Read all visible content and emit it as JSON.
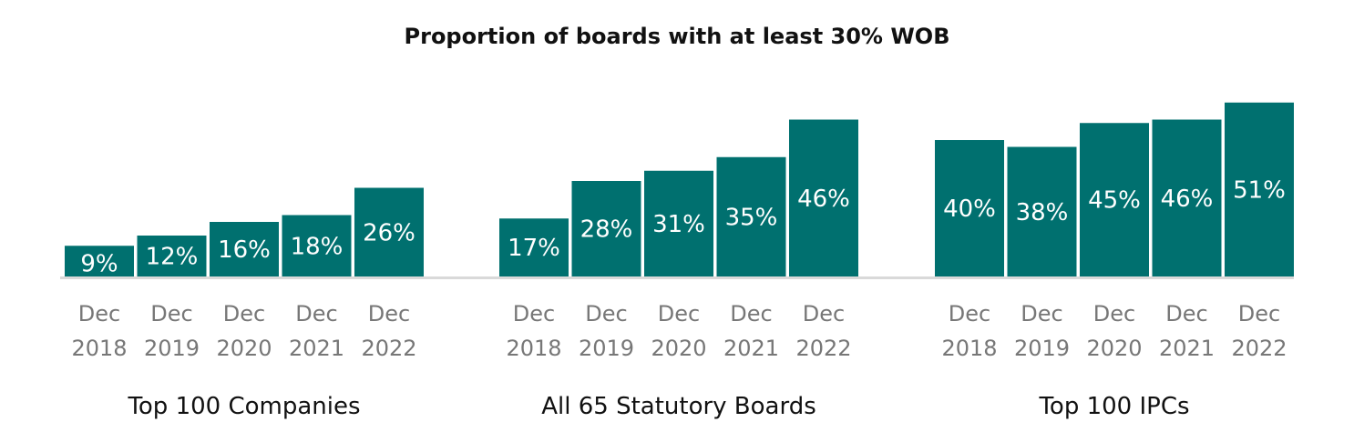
{
  "chart_data": {
    "type": "bar",
    "title": "Proportion of boards with at least 30% WOB",
    "value_suffix": "%",
    "bar_color": "#00706f",
    "baseline_color": "#d9d9d9",
    "ylim": [
      0,
      60
    ],
    "categories": [
      [
        "Dec",
        "2018"
      ],
      [
        "Dec",
        "2019"
      ],
      [
        "Dec",
        "2020"
      ],
      [
        "Dec",
        "2021"
      ],
      [
        "Dec",
        "2022"
      ]
    ],
    "groups": [
      {
        "name": "Top 100 Companies",
        "values": [
          9,
          12,
          16,
          18,
          26
        ]
      },
      {
        "name": "All 65 Statutory Boards",
        "values": [
          17,
          28,
          31,
          35,
          46
        ]
      },
      {
        "name": "Top 100 IPCs",
        "values": [
          40,
          38,
          45,
          46,
          51
        ]
      }
    ]
  }
}
